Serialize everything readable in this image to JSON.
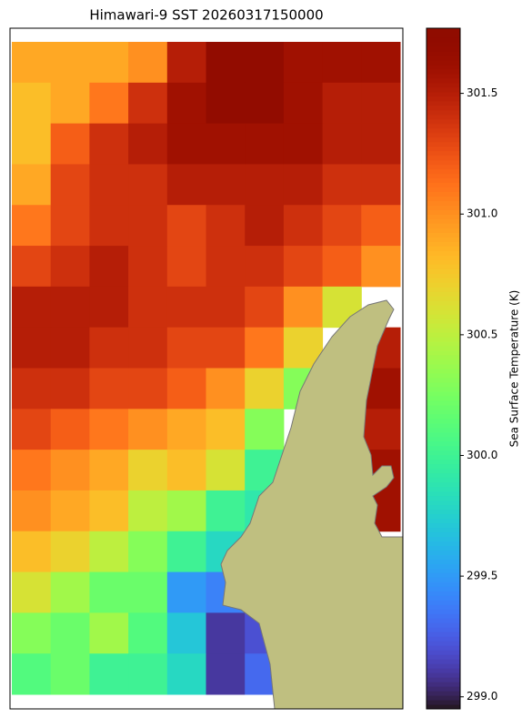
{
  "chart_data": {
    "type": "heatmap",
    "title": "Himawari-9 SST 20260317150000",
    "colorbar_label": "Sea Surface Temperature (K)",
    "colormap": "turbo",
    "clim": [
      298.95,
      301.77
    ],
    "cticks": [
      {
        "value": 299.0,
        "label": "299.0"
      },
      {
        "value": 299.5,
        "label": "299.5"
      },
      {
        "value": 300.0,
        "label": "300.0"
      },
      {
        "value": 300.5,
        "label": "300.5"
      },
      {
        "value": 301.0,
        "label": "301.0"
      },
      {
        "value": 301.5,
        "label": "301.5"
      }
    ],
    "values": [
      [
        300.9,
        300.9,
        300.9,
        301.0,
        301.5,
        301.7,
        301.7,
        301.6,
        301.6,
        301.6
      ],
      [
        300.8,
        300.9,
        301.1,
        301.4,
        301.6,
        301.7,
        301.7,
        301.6,
        301.5,
        301.5
      ],
      [
        300.8,
        301.2,
        301.4,
        301.5,
        301.6,
        301.6,
        301.6,
        301.6,
        301.5,
        301.5
      ],
      [
        300.9,
        301.3,
        301.4,
        301.4,
        301.5,
        301.5,
        301.5,
        301.5,
        301.4,
        301.4
      ],
      [
        301.1,
        301.3,
        301.4,
        301.4,
        301.3,
        301.4,
        301.5,
        301.4,
        301.3,
        301.2
      ],
      [
        301.3,
        301.4,
        301.5,
        301.4,
        301.3,
        301.4,
        301.4,
        301.3,
        301.2,
        301.0
      ],
      [
        301.5,
        301.5,
        301.5,
        301.4,
        301.4,
        301.4,
        301.3,
        301.0,
        300.6,
        null
      ],
      [
        301.5,
        301.5,
        301.4,
        301.4,
        301.3,
        301.3,
        301.1,
        300.7,
        null,
        301.5
      ],
      [
        301.4,
        301.4,
        301.3,
        301.3,
        301.2,
        301.0,
        300.7,
        300.3,
        null,
        301.6
      ],
      [
        301.3,
        301.2,
        301.1,
        301.0,
        300.9,
        300.8,
        300.3,
        null,
        null,
        301.5
      ],
      [
        301.1,
        301.0,
        300.9,
        300.7,
        300.8,
        300.6,
        300.0,
        null,
        null,
        301.6
      ],
      [
        301.0,
        300.9,
        300.8,
        300.5,
        300.4,
        300.0,
        299.9,
        null,
        null,
        301.6
      ],
      [
        300.8,
        300.7,
        300.5,
        300.3,
        300.0,
        299.8,
        null,
        null,
        null,
        null
      ],
      [
        300.6,
        300.4,
        300.2,
        300.2,
        299.5,
        299.4,
        null,
        null,
        null,
        null
      ],
      [
        300.3,
        300.2,
        300.4,
        300.1,
        299.7,
        299.1,
        299.2,
        null,
        null,
        null
      ],
      [
        300.1,
        300.2,
        300.0,
        300.0,
        299.8,
        299.1,
        299.3,
        null,
        null,
        null
      ]
    ]
  }
}
